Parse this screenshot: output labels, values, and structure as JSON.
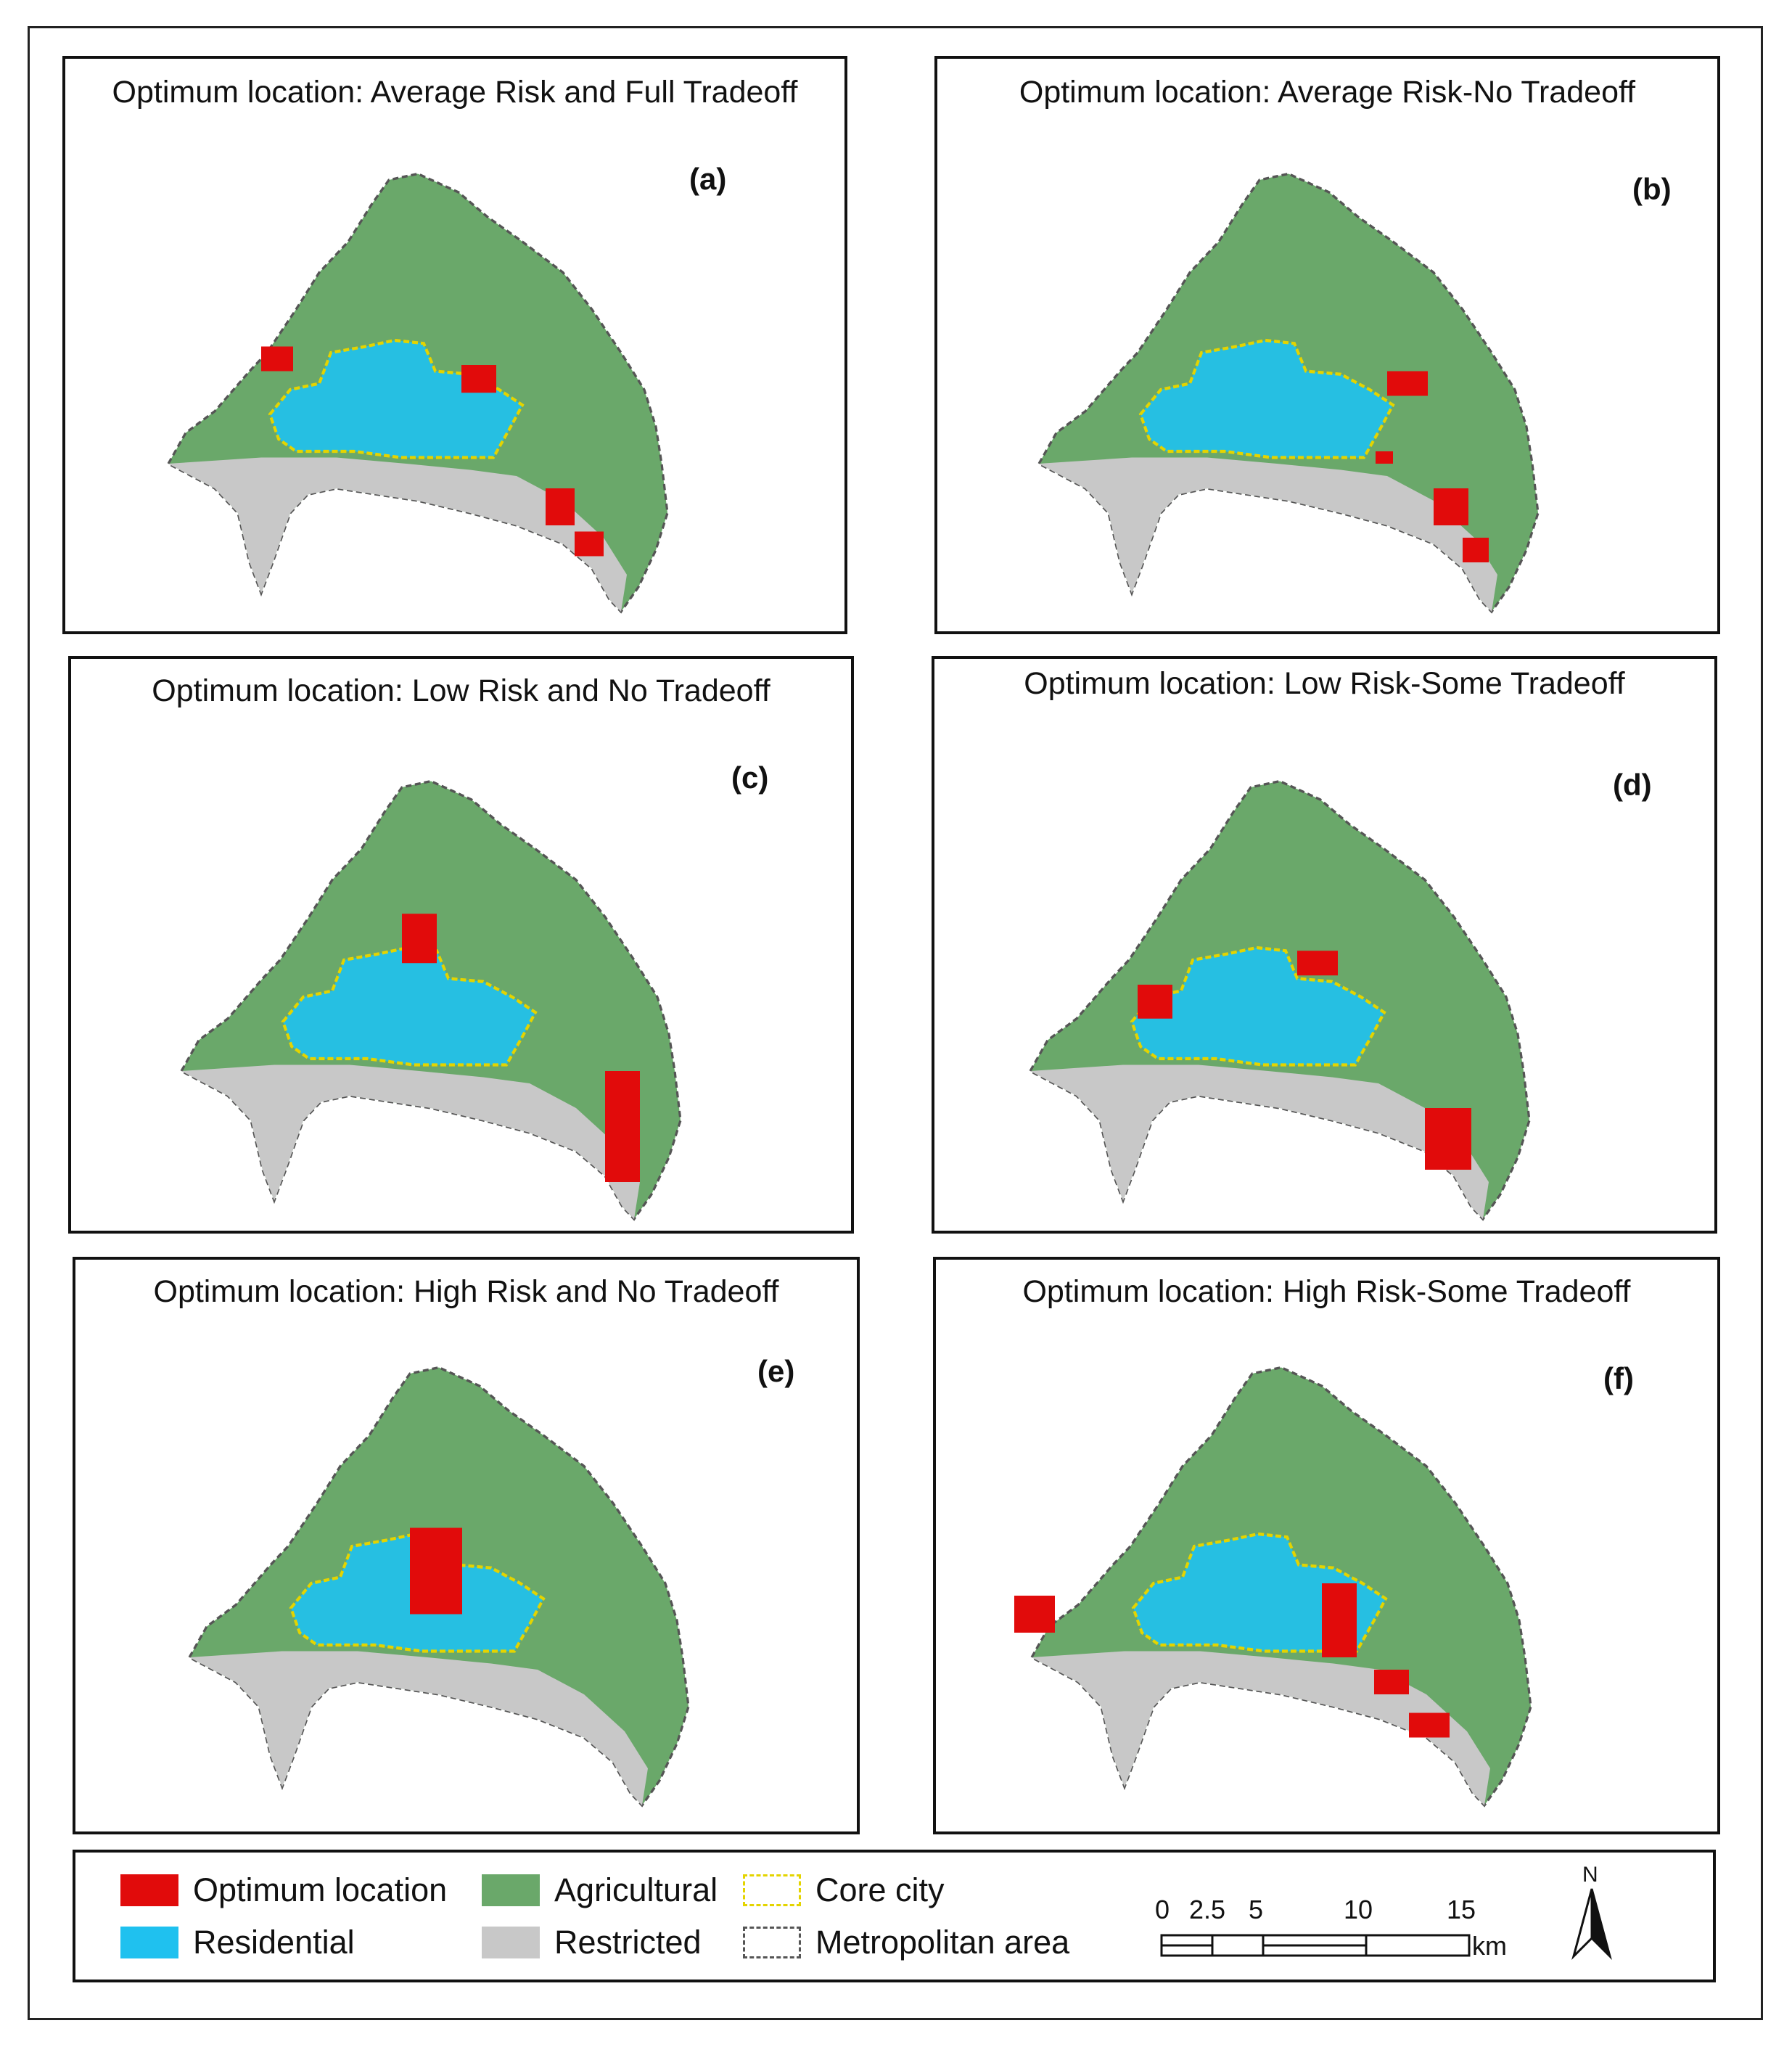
{
  "panels": [
    {
      "id": "a",
      "title": "Optimum location: Average Risk and Full Tradeoff",
      "letter": "(a)"
    },
    {
      "id": "b",
      "title": "Optimum location: Average Risk-No Tradeoff",
      "letter": "(b)"
    },
    {
      "id": "c",
      "title": "Optimum location: Low Risk and No Tradeoff",
      "letter": "(c)"
    },
    {
      "id": "d",
      "title": "Optimum location: Low Risk-Some Tradeoff",
      "letter": "(d)"
    },
    {
      "id": "e",
      "title": "Optimum location: High Risk and No Tradeoff",
      "letter": "(e)"
    },
    {
      "id": "f",
      "title": "Optimum location: High Risk-Some Tradeoff",
      "letter": "(f)"
    }
  ],
  "legend": {
    "optimum": "Optimum location",
    "residential": "Residential",
    "agricultural": "Agricultural",
    "restricted": "Restricted",
    "core_city": "Core city",
    "metro_area": "Metropolitan area"
  },
  "colors": {
    "optimum": "#e10b0b",
    "residential": "#1fc1ef",
    "agricultural": "#6aa86a",
    "restricted": "#c8c8c8",
    "core_city": "#e4d400",
    "metro_boundary": "#555555"
  },
  "scale_bar": {
    "ticks": [
      "0",
      "2.5",
      "5",
      "10",
      "15"
    ],
    "unit": "km"
  },
  "north_arrow": {
    "label": "N",
    "icon": "north-arrow-icon"
  }
}
